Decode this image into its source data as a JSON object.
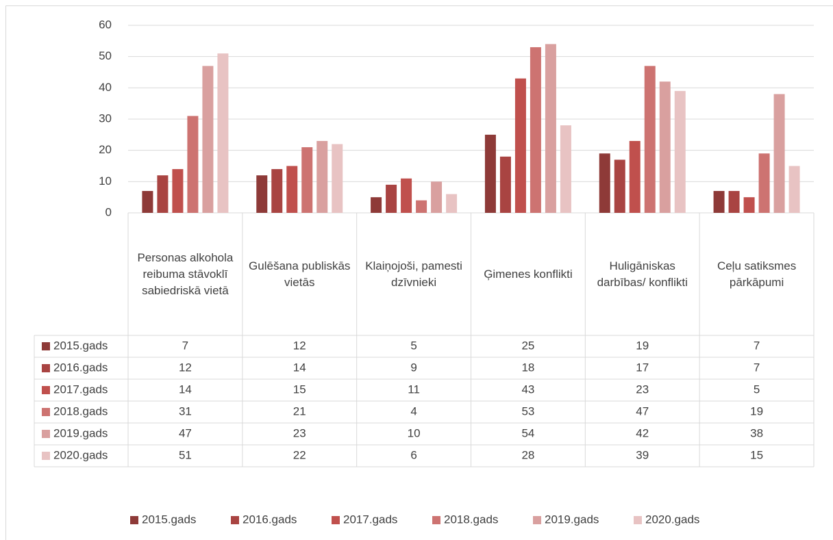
{
  "chart_data": {
    "type": "bar",
    "categories": [
      "Personas alkohola reibuma stāvoklī sabiedriskā vietā",
      "Gulēšana publiskās vietās",
      "Klaiņojoši, pamesti dzīvnieki",
      "Ģimenes konflikti",
      "Huligāniskas darbības/ konflikti",
      "Ceļu satiksmes pārkāpumi"
    ],
    "series": [
      {
        "name": "2015.gads",
        "color": "#8e3a38",
        "values": [
          7,
          12,
          5,
          25,
          19,
          7
        ]
      },
      {
        "name": "2016.gads",
        "color": "#a94442",
        "values": [
          12,
          14,
          9,
          18,
          17,
          7
        ]
      },
      {
        "name": "2017.gads",
        "color": "#c0504d",
        "values": [
          14,
          15,
          11,
          43,
          23,
          5
        ]
      },
      {
        "name": "2018.gads",
        "color": "#cd7371",
        "values": [
          31,
          21,
          4,
          53,
          47,
          19
        ]
      },
      {
        "name": "2019.gads",
        "color": "#d9a09f",
        "values": [
          47,
          23,
          10,
          54,
          42,
          38
        ]
      },
      {
        "name": "2020.gads",
        "color": "#e8c3c3",
        "values": [
          51,
          22,
          6,
          28,
          39,
          15
        ]
      }
    ],
    "ylim": [
      0,
      60
    ],
    "yticks": [
      0,
      10,
      20,
      30,
      40,
      50,
      60
    ],
    "grid": true
  }
}
